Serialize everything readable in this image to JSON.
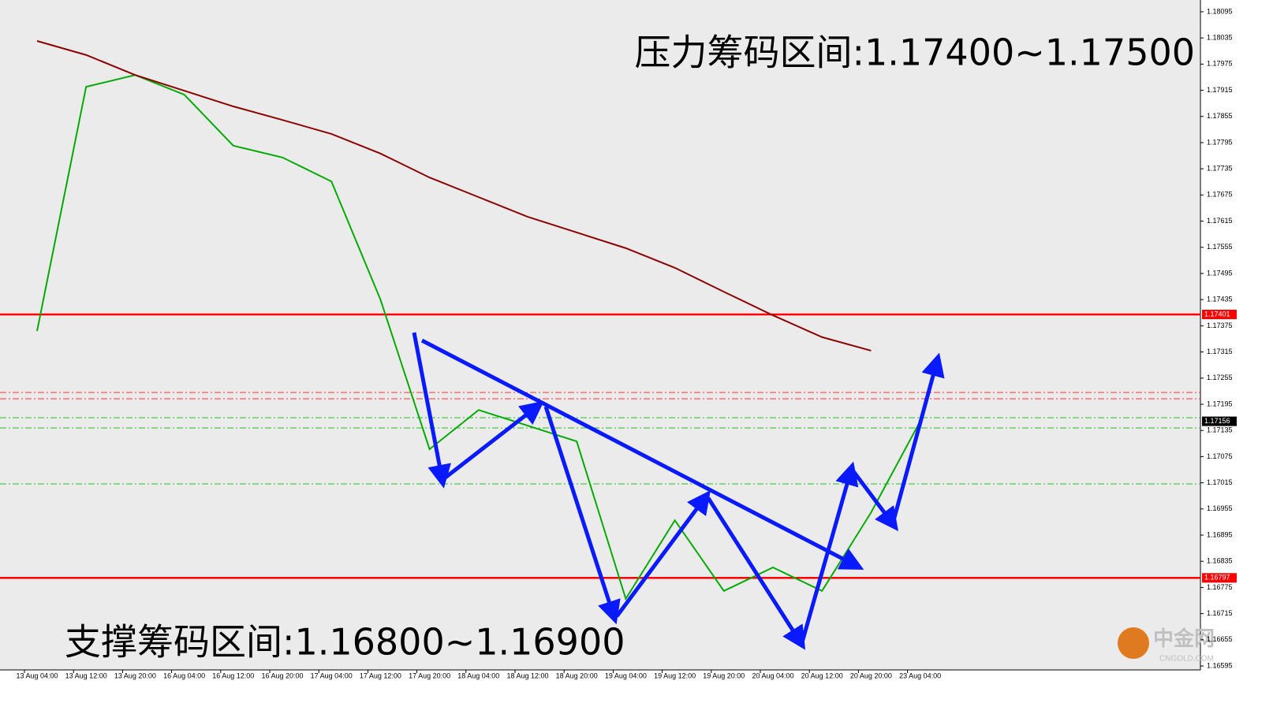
{
  "chart_data": {
    "type": "line",
    "annotations": [
      "压力筹码区间:1.17400~1.17500",
      "支撑筹码区间:1.16800~1.16900"
    ],
    "watermark": {
      "name": "中金网",
      "site": "CNGOLD.COM"
    },
    "categories": [
      "13 Aug 04:00",
      "13 Aug 12:00",
      "13 Aug 20:00",
      "16 Aug 04:00",
      "16 Aug 12:00",
      "16 Aug 20:00",
      "17 Aug 04:00",
      "17 Aug 12:00",
      "17 Aug 20:00",
      "18 Aug 04:00",
      "18 Aug 12:00",
      "18 Aug 20:00",
      "19 Aug 04:00",
      "19 Aug 12:00",
      "19 Aug 20:00",
      "20 Aug 04:00",
      "20 Aug 12:00",
      "20 Aug 20:00",
      "23 Aug 04:00"
    ],
    "series": [
      {
        "color": "#00aa00",
        "values": [
          1.17363,
          1.17923,
          1.1795,
          1.17905,
          1.17788,
          1.17761,
          1.17706,
          1.17435,
          1.17092,
          1.17182,
          1.17146,
          1.1711,
          1.16749,
          1.16929,
          1.16767,
          1.16821,
          1.16767,
          1.16947,
          1.17156
        ]
      },
      {
        "color": "#8b0000",
        "values": [
          1.18028,
          1.17996,
          1.1795,
          1.17914,
          1.17878,
          1.17847,
          1.17815,
          1.1777,
          1.17715,
          1.1767,
          1.17625,
          1.17589,
          1.17553,
          1.17508,
          1.17453,
          1.17399,
          1.17349,
          1.17318,
          null
        ]
      }
    ],
    "levels": [
      {
        "value": 1.17401,
        "color": "#ff0000"
      },
      {
        "value": 1.16797,
        "color": "#ff0000"
      },
      {
        "value": 1.17156,
        "color": "#000000"
      }
    ],
    "ylim": [
      1.16586,
      1.18122
    ],
    "yticks": [
      1.18095,
      1.18035,
      1.17975,
      1.17915,
      1.17855,
      1.17795,
      1.17735,
      1.17675,
      1.17615,
      1.17555,
      1.17495,
      1.17435,
      1.17375,
      1.17315,
      1.17255,
      1.17195,
      1.17135,
      1.17075,
      1.17015,
      1.16955,
      1.16895,
      1.16835,
      1.16775,
      1.16715,
      1.16655,
      1.16595
    ]
  }
}
